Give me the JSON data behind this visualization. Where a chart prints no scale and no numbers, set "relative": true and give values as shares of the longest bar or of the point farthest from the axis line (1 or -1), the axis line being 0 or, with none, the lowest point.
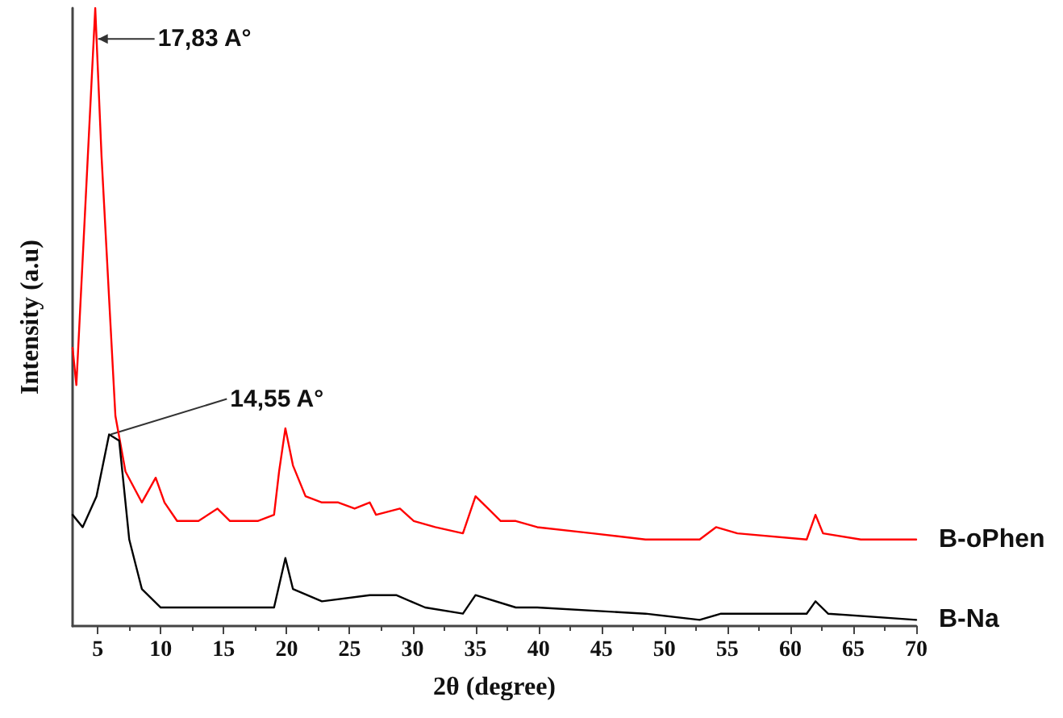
{
  "chart_data": {
    "type": "line",
    "xlabel": "2θ (degree)",
    "ylabel": "Intensity (a.u)",
    "relative": true,
    "xlim": [
      3,
      70
    ],
    "xticks": [
      5,
      10,
      15,
      20,
      25,
      30,
      35,
      40,
      45,
      50,
      55,
      60,
      65,
      70
    ],
    "grid": false,
    "legend": false,
    "marker": "none",
    "line_style": "solid",
    "annotations": [
      {
        "text": "17,83 A°",
        "x": 4.9,
        "y": 0.95
      },
      {
        "text": "14,55 A°",
        "x": 5.9,
        "y": 0.31
      }
    ],
    "series": [
      {
        "name": "B-oPhen",
        "color": "#ff0000",
        "x": [
          3,
          3.3,
          4.8,
          5.3,
          5.9,
          6.4,
          7.2,
          8.5,
          9.6,
          10.3,
          11.3,
          13,
          14.5,
          15.5,
          17.7,
          19,
          19.4,
          19.9,
          20.5,
          21.5,
          22.8,
          24.1,
          25.4,
          26.6,
          27.1,
          29,
          30.1,
          31.8,
          34,
          35,
          36,
          37,
          38.2,
          39.9,
          44.3,
          48.5,
          52.8,
          54.1,
          55.8,
          61.3,
          62,
          62.6,
          65.6,
          70
        ],
        "values": [
          0.45,
          0.39,
          1.0,
          0.76,
          0.53,
          0.34,
          0.25,
          0.2,
          0.24,
          0.2,
          0.17,
          0.17,
          0.19,
          0.17,
          0.17,
          0.18,
          0.25,
          0.32,
          0.26,
          0.21,
          0.2,
          0.2,
          0.19,
          0.2,
          0.18,
          0.19,
          0.17,
          0.16,
          0.15,
          0.21,
          0.19,
          0.17,
          0.17,
          0.16,
          0.15,
          0.14,
          0.14,
          0.16,
          0.15,
          0.14,
          0.18,
          0.15,
          0.14,
          0.14
        ]
      },
      {
        "name": "B-Na",
        "color": "#000000",
        "x": [
          3,
          3.8,
          4.9,
          5.9,
          6.7,
          7.5,
          8.5,
          10,
          14.3,
          19,
          19.9,
          20.5,
          22.8,
          26.6,
          28.7,
          31,
          34,
          35,
          38.2,
          39.9,
          48.5,
          52.8,
          54.5,
          57.1,
          61.3,
          62,
          63,
          70
        ],
        "values": [
          0.18,
          0.16,
          0.21,
          0.31,
          0.3,
          0.14,
          0.06,
          0.03,
          0.03,
          0.03,
          0.11,
          0.06,
          0.04,
          0.05,
          0.05,
          0.03,
          0.02,
          0.05,
          0.03,
          0.03,
          0.02,
          0.01,
          0.02,
          0.02,
          0.02,
          0.04,
          0.02,
          0.01
        ]
      }
    ]
  }
}
